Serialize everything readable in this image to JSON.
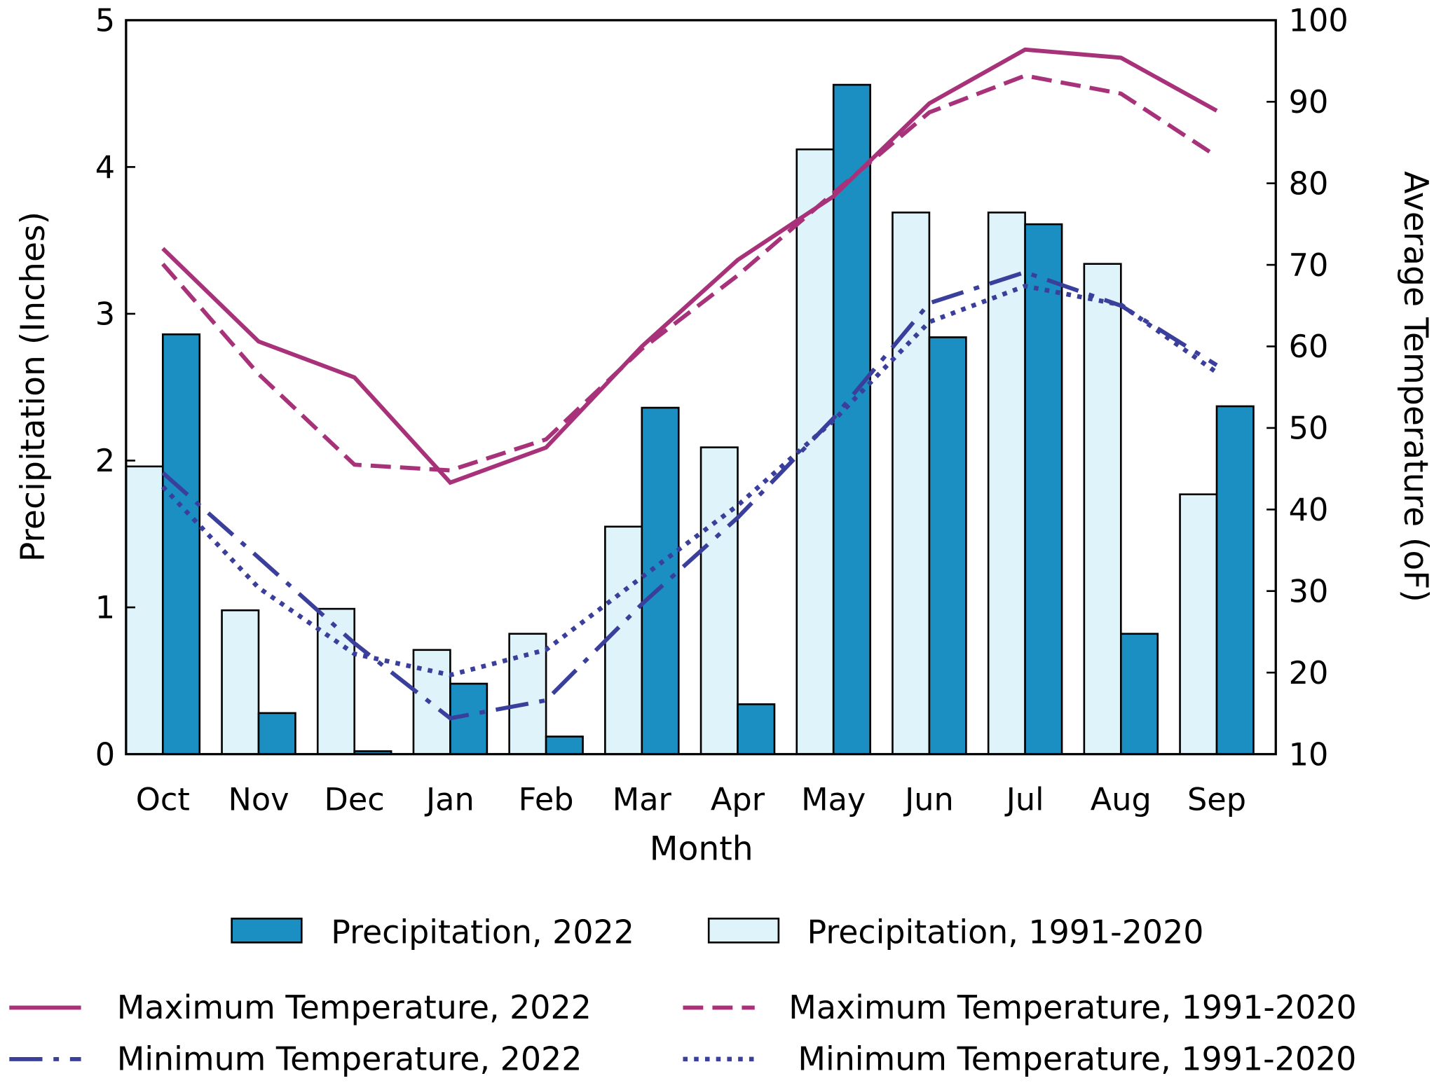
{
  "chart_data": {
    "type": "bar+line",
    "xlabel": "Month",
    "ylabel_left": "Precipitation (Inches)",
    "ylabel_right": "Average Temperature (oF)",
    "ylim_left": [
      0,
      5
    ],
    "ylim_right": [
      10,
      100
    ],
    "yticks_left": [
      "0",
      "1",
      "2",
      "3",
      "4",
      "5"
    ],
    "yticks_right": [
      "10",
      "20",
      "30",
      "40",
      "50",
      "60",
      "70",
      "80",
      "90",
      "100"
    ],
    "grid": false,
    "legend_placement": "bottom",
    "categories": [
      "Oct",
      "Nov",
      "Dec",
      "Jan",
      "Feb",
      "Mar",
      "Apr",
      "May",
      "Jun",
      "Jul",
      "Aug",
      "Sep"
    ],
    "bar_series": [
      {
        "name": "Precipitation, 1991-2020",
        "color": "#dff3fa",
        "values": [
          1.96,
          0.98,
          0.99,
          0.71,
          0.82,
          1.55,
          2.09,
          4.12,
          3.69,
          3.69,
          3.34,
          1.77
        ]
      },
      {
        "name": "Precipitation, 2022",
        "color": "#1b8ec2",
        "values": [
          2.86,
          0.28,
          0.02,
          0.48,
          0.12,
          2.36,
          0.34,
          4.56,
          2.84,
          3.61,
          0.82,
          2.37
        ]
      }
    ],
    "line_series": [
      {
        "name": "Maximum Temperature, 2022",
        "color": "#a8327a",
        "style": "solid",
        "values": [
          72.0,
          60.6,
          56.2,
          43.3,
          47.6,
          60.0,
          70.6,
          78.4,
          89.8,
          96.4,
          95.4,
          88.9
        ]
      },
      {
        "name": "Maximum Temperature, 1991-2020",
        "color": "#a8327a",
        "style": "dashed",
        "values": [
          70.1,
          56.6,
          45.5,
          44.8,
          48.6,
          59.7,
          68.7,
          78.8,
          88.7,
          93.2,
          91.0,
          83.3
        ]
      },
      {
        "name": "Minimum Temperature, 2022",
        "color": "#3b3f9c",
        "style": "dash-dot",
        "values": [
          44.5,
          34.1,
          23.6,
          14.4,
          16.6,
          28.4,
          39.0,
          51.2,
          65.3,
          69.1,
          65.0,
          57.7
        ]
      },
      {
        "name": "Minimum Temperature, 1991-2020",
        "color": "#3b3f9c",
        "style": "dotted",
        "values": [
          42.8,
          30.4,
          22.3,
          19.7,
          22.8,
          31.7,
          40.5,
          50.9,
          63.0,
          67.4,
          65.1,
          56.8
        ]
      }
    ]
  }
}
